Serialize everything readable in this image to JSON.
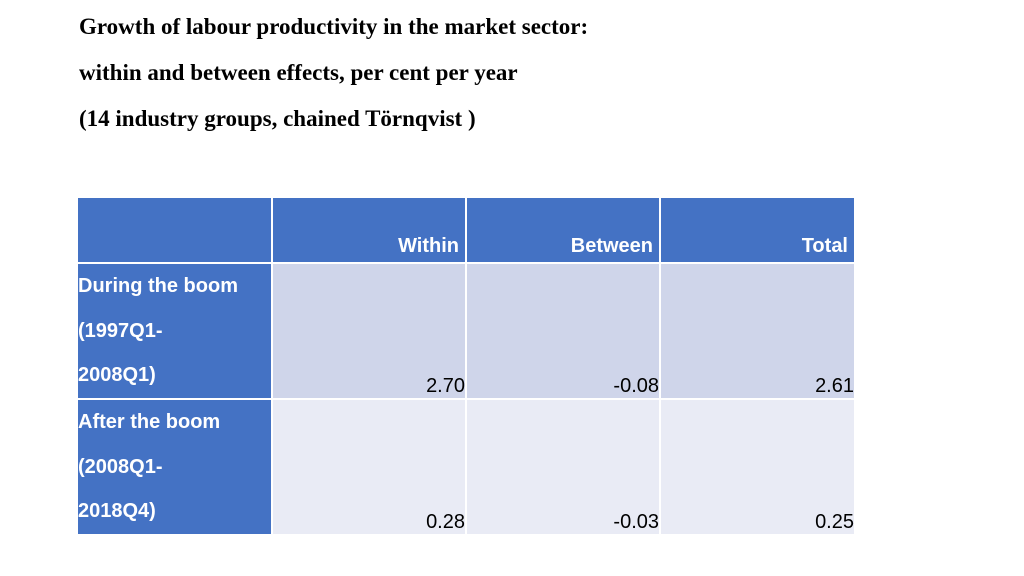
{
  "title": {
    "line1": "Growth of labour productivity in the market sector:",
    "line2": "within and between effects, per cent per year",
    "line3": "(14 industry groups, chained Törnqvist )"
  },
  "table": {
    "headers": [
      "",
      "Within",
      "Between",
      "Total"
    ],
    "rows": [
      {
        "label_lines": [
          "During the boom",
          "(1997Q1-",
          "2008Q1)"
        ],
        "within": "2.70",
        "between": "-0.08",
        "total": "2.61"
      },
      {
        "label_lines": [
          "After the boom",
          "(2008Q1-",
          "2018Q4)"
        ],
        "within": "0.28",
        "between": "-0.03",
        "total": "0.25"
      }
    ]
  },
  "colors": {
    "header_fill": "#4472c4",
    "row1_fill": "#cfd5ea",
    "row2_fill": "#e9ebf5"
  }
}
